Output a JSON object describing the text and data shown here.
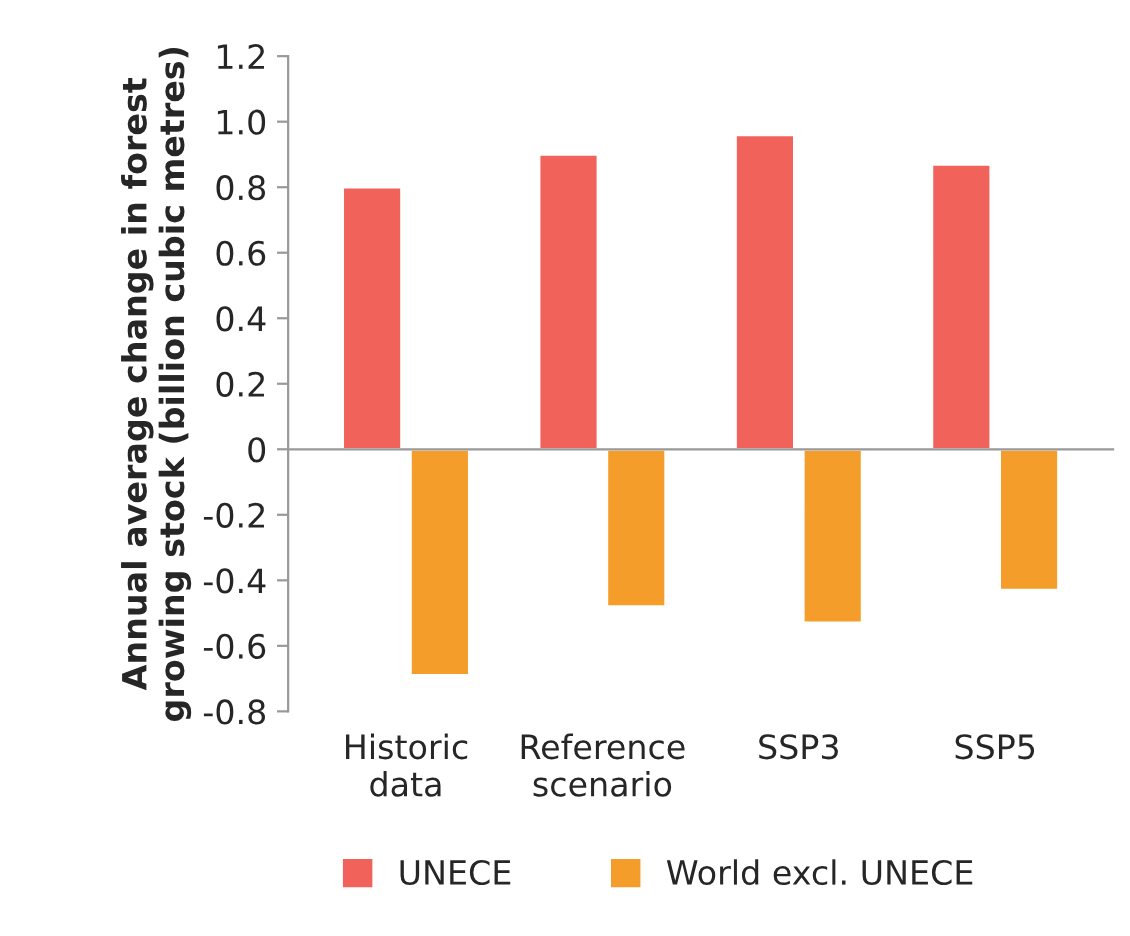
{
  "chart_data": {
    "type": "bar",
    "ylabel": "Annual average change in forest growing stock (billion cubic metres)",
    "categories": [
      "Historic\ndata",
      "Reference\nscenario",
      "SSP3",
      "SSP5"
    ],
    "series": [
      {
        "name": "UNECE",
        "color": "#f0625a",
        "values": [
          0.8,
          0.9,
          0.96,
          0.87
        ]
      },
      {
        "name": "World excl. UNECE",
        "color": "#f59d2a",
        "values": [
          -0.69,
          -0.48,
          -0.53,
          -0.43
        ]
      }
    ],
    "ylim": [
      -0.8,
      1.2
    ],
    "yticks": [
      {
        "value": -0.8,
        "label": "-0.8"
      },
      {
        "value": -0.6,
        "label": "-0.6"
      },
      {
        "value": -0.4,
        "label": "-0.4"
      },
      {
        "value": -0.2,
        "label": "-0.2"
      },
      0,
      {
        "value": 0.2,
        "label": "0.2"
      },
      {
        "value": 0.4,
        "label": "0.4"
      },
      {
        "value": 0.6,
        "label": "0.6"
      },
      {
        "value": 0.8,
        "label": "0.8"
      },
      {
        "value": 1.0,
        "label": "1.0"
      },
      {
        "value": 1.2,
        "label": "1.2"
      }
    ],
    "legend": "bottom"
  }
}
